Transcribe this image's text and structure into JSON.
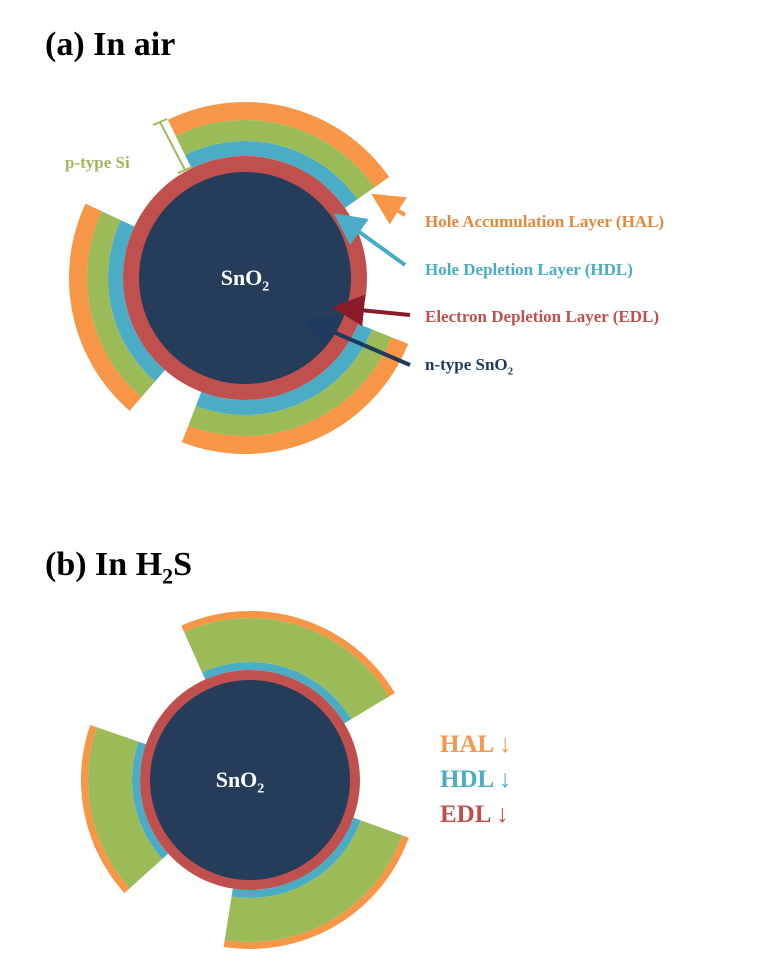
{
  "panels": [
    {
      "title": [
        "(a) In air"
      ],
      "core_label": [
        "SnO",
        "2"
      ],
      "substrate_label": "p-type Si",
      "layer_labels": [
        [
          "Hole Accumulation Layer (HAL)"
        ],
        [
          "Hole Depletion Layer (HDL)"
        ],
        [
          "Electron Depletion Layer (EDL)"
        ],
        [
          "n-type SnO",
          "2"
        ]
      ]
    },
    {
      "title": [
        "(b) In H",
        "2",
        "S"
      ],
      "core_label": [
        "SnO",
        "2"
      ],
      "layer_labels": [
        [
          "HAL ↓"
        ],
        [
          "HDL ↓"
        ],
        [
          "EDL ↓"
        ]
      ]
    }
  ]
}
